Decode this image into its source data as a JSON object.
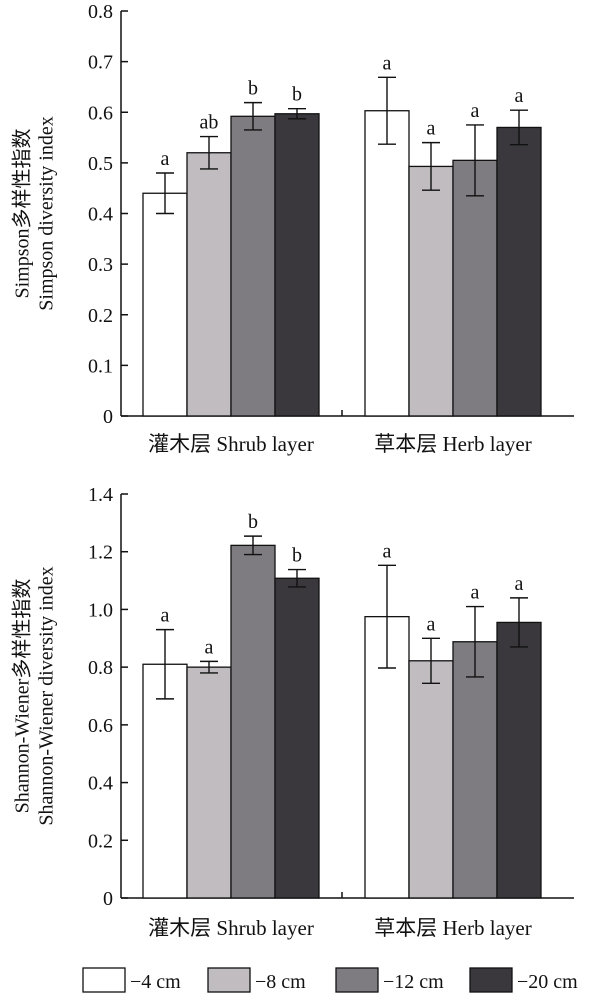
{
  "chart_data": [
    {
      "type": "bar",
      "ylabel": [
        "Simpson多样性指数",
        "Simpson diversity index"
      ],
      "ylim": [
        0,
        0.8
      ],
      "yticks": [
        "0",
        "0.1",
        "0.2",
        "0.3",
        "0.4",
        "0.5",
        "0.6",
        "0.7",
        "0.8"
      ],
      "yticks_values": [
        0,
        0.1,
        0.2,
        0.3,
        0.4,
        0.5,
        0.6,
        0.7,
        0.8
      ],
      "categories": [
        "灌木层 Shrub layer",
        "草本层 Herb layer"
      ],
      "series": [
        {
          "name": "−4 cm",
          "values": [
            0.44,
            0.603
          ],
          "errors": [
            0.04,
            0.066
          ],
          "labels": [
            "a",
            "a"
          ]
        },
        {
          "name": "−8 cm",
          "values": [
            0.52,
            0.493
          ],
          "errors": [
            0.032,
            0.047
          ],
          "labels": [
            "ab",
            "a"
          ]
        },
        {
          "name": "−12 cm",
          "values": [
            0.592,
            0.505
          ],
          "errors": [
            0.027,
            0.07
          ],
          "labels": [
            "b",
            "a"
          ]
        },
        {
          "name": "−20 cm",
          "values": [
            0.597,
            0.57
          ],
          "errors": [
            0.01,
            0.034
          ],
          "labels": [
            "b",
            "a"
          ]
        }
      ]
    },
    {
      "type": "bar",
      "ylabel": [
        "Shannon-Wiener多样性指数",
        "Shannon-Wiener diversity index"
      ],
      "ylim": [
        0,
        1.4
      ],
      "yticks": [
        "0",
        "0.2",
        "0.4",
        "0.6",
        "0.8",
        "1.0",
        "1.2",
        "1.4"
      ],
      "yticks_values": [
        0,
        0.2,
        0.4,
        0.6,
        0.8,
        1.0,
        1.2,
        1.4
      ],
      "categories": [
        "灌木层 Shrub layer",
        "草本层 Herb layer"
      ],
      "series": [
        {
          "name": "−4 cm",
          "values": [
            0.81,
            0.975
          ],
          "errors": [
            0.12,
            0.178
          ],
          "labels": [
            "a",
            "a"
          ]
        },
        {
          "name": "−8 cm",
          "values": [
            0.8,
            0.822
          ],
          "errors": [
            0.02,
            0.078
          ],
          "labels": [
            "a",
            "a"
          ]
        },
        {
          "name": "−12 cm",
          "values": [
            1.222,
            0.888
          ],
          "errors": [
            0.032,
            0.122
          ],
          "labels": [
            "b",
            "a"
          ]
        },
        {
          "name": "−20 cm",
          "values": [
            1.108,
            0.955
          ],
          "errors": [
            0.03,
            0.085
          ],
          "labels": [
            "b",
            "a"
          ]
        }
      ]
    }
  ],
  "legend": {
    "items": [
      {
        "label": "−4 cm",
        "color": "#ffffff"
      },
      {
        "label": "−8 cm",
        "color": "#c0bcc0"
      },
      {
        "label": "−12 cm",
        "color": "#7e7c80"
      },
      {
        "label": "−20 cm",
        "color": "#3a383c"
      }
    ]
  }
}
